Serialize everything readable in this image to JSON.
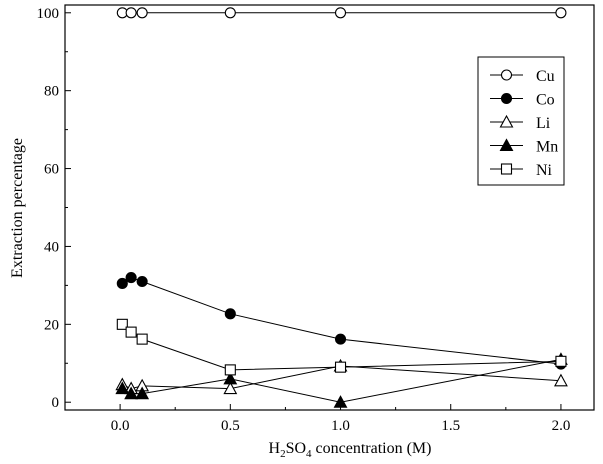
{
  "chart_data": {
    "type": "line",
    "title": "",
    "xlabel": {
      "prefix": "H",
      "sub1": "2",
      "middle": "SO",
      "sub2": "4",
      "suffix": " concentration (M)"
    },
    "ylabel": "Extraction percentage",
    "xlim": [
      -0.25,
      2.15
    ],
    "ylim": [
      -2,
      102
    ],
    "xticks": [
      "0.0",
      "0.5",
      "1.0",
      "1.5",
      "2.0"
    ],
    "xtick_values": [
      0,
      0.5,
      1,
      1.5,
      2
    ],
    "yticks": [
      "0",
      "20",
      "40",
      "60",
      "80",
      "100"
    ],
    "ytick_values": [
      0,
      20,
      40,
      60,
      80,
      100
    ],
    "legend_position": "upper-right",
    "series": [
      {
        "name": "Cu",
        "marker": "circle",
        "filled": false,
        "x": [
          0.01,
          0.05,
          0.1,
          0.5,
          1.0,
          2.0
        ],
        "y": [
          100,
          100,
          100,
          100,
          100,
          100
        ]
      },
      {
        "name": "Co",
        "marker": "circle",
        "filled": true,
        "x": [
          0.01,
          0.05,
          0.1,
          0.5,
          1.0,
          2.0
        ],
        "y": [
          30.5,
          32,
          31,
          22.7,
          16.2,
          9.8
        ]
      },
      {
        "name": "Li",
        "marker": "triangle",
        "filled": false,
        "x": [
          0.01,
          0.05,
          0.1,
          0.5,
          1.0,
          2.0
        ],
        "y": [
          4.5,
          3.5,
          4.2,
          3.5,
          9.3,
          5.5
        ]
      },
      {
        "name": "Mn",
        "marker": "triangle",
        "filled": true,
        "x": [
          0.01,
          0.05,
          0.1,
          0.5,
          1.0,
          2.0
        ],
        "y": [
          3.5,
          2.2,
          2.2,
          6,
          0,
          11
        ]
      },
      {
        "name": "Ni",
        "marker": "square",
        "filled": false,
        "x": [
          0.01,
          0.05,
          0.1,
          0.5,
          1.0,
          2.0
        ],
        "y": [
          20,
          18,
          16.2,
          8.3,
          9,
          10.5
        ]
      }
    ]
  }
}
